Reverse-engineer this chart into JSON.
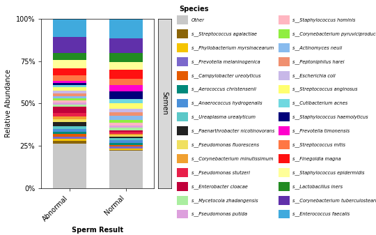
{
  "categories": [
    "Abnormal",
    "Normal"
  ],
  "species": [
    "Other",
    "s__Streptococcus agalactiae",
    "s__Phyllobacterium myrsinacearum",
    "s__Prevotella melaninogenica",
    "s__Campylobacter ureolyticus",
    "s__Aerococcus christensenii",
    "s__Anaerococcus hydrogenalis",
    "s__Ureaplasma urealyticum",
    "s__Paenarthrobacter nicotinovorans",
    "s__Pseudomonas fluorescens",
    "s__Corynebacterium minutissimum",
    "s__Pseudomonas stutzeri",
    "s__Enterobacter cloacae",
    "s__Mycetocola zhadangensis",
    "s__Pseudomonas putida",
    "s__Staphylococcus hominis",
    "s__Corynebacterium pyruviciproducens",
    "s__Actinomyces neuii",
    "s__Peptoniphilus harei",
    "s__Escherichia coli",
    "s__Streptococcus anginosus",
    "s__Cutibacterium acnes",
    "s__Staphylococcus haemolyticus",
    "s__Prevotella timonensis",
    "s__Streptococcus mitis",
    "s__Finegoldia magna",
    "s__Staphylococcus epidermidis",
    "s__Lactobacillus iners",
    "s__Corynebacterium tuberculostearicum",
    "s__Enterococcus faecalis"
  ],
  "colors": [
    "#c8c8c8",
    "#8B6508",
    "#F5C400",
    "#7B68CC",
    "#E55A00",
    "#00897B",
    "#4A90D9",
    "#5BC8C8",
    "#222222",
    "#F0E060",
    "#F0A030",
    "#E8204A",
    "#C0003A",
    "#AAEEA0",
    "#DDA0DD",
    "#FFB6C1",
    "#90EE40",
    "#88BBEE",
    "#F09070",
    "#C8B8E8",
    "#FFFF70",
    "#70D8E0",
    "#00007A",
    "#FF00CC",
    "#FF7744",
    "#FF1111",
    "#FFFF99",
    "#228B22",
    "#6030AA",
    "#40AADD"
  ],
  "abnormal_values": [
    30.0,
    1.8,
    1.5,
    1.5,
    1.8,
    1.5,
    2.0,
    2.0,
    2.5,
    2.0,
    1.8,
    2.5,
    4.0,
    1.5,
    1.5,
    1.5,
    1.5,
    1.5,
    1.8,
    2.0,
    2.0,
    1.5,
    1.5,
    1.5,
    3.5,
    5.0,
    5.5,
    5.0,
    10.5,
    12.5
  ],
  "normal_values": [
    25.0,
    0.5,
    1.0,
    1.5,
    1.0,
    1.5,
    1.5,
    1.5,
    1.0,
    1.0,
    1.0,
    1.5,
    1.0,
    1.5,
    1.5,
    2.0,
    2.0,
    2.5,
    2.5,
    2.5,
    3.5,
    3.0,
    5.0,
    4.5,
    4.0,
    6.0,
    5.5,
    6.0,
    10.0,
    13.0
  ],
  "ylabel": "Relative Abundance",
  "xlabel": "Sperm Result",
  "facet_label": "Semen",
  "yticks": [
    0,
    25,
    50,
    75,
    100
  ],
  "ytick_labels": [
    "0%",
    "25%",
    "50%",
    "75%",
    "100%"
  ]
}
